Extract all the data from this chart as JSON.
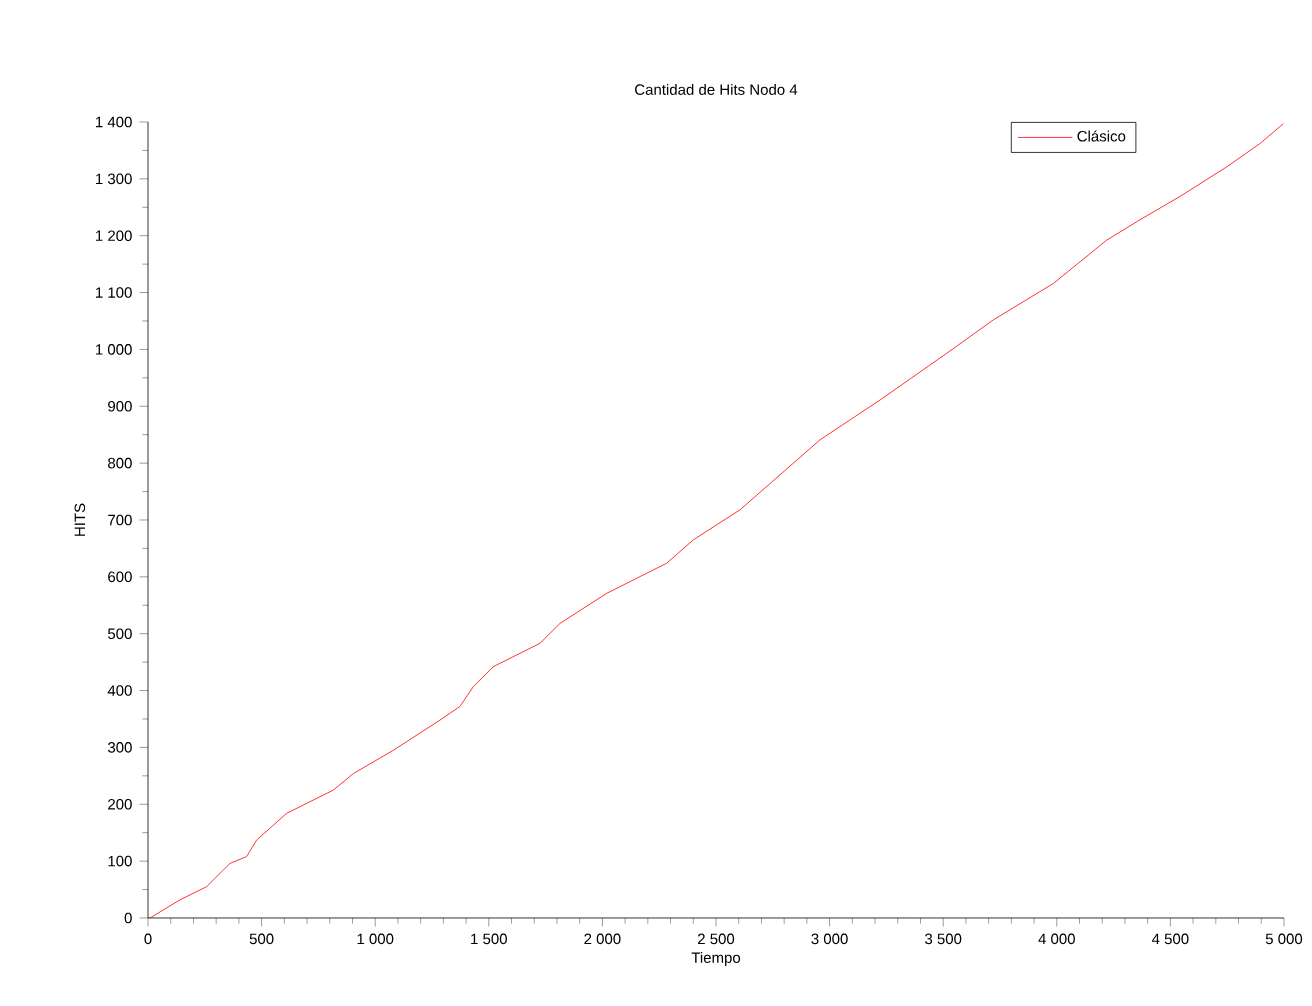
{
  "chart_data": {
    "type": "line",
    "title": "Cantidad de Hits Nodo 4",
    "xlabel": "Tiempo",
    "ylabel": "HITS",
    "x": [
      0,
      9,
      141,
      258,
      361,
      434,
      478,
      610,
      816,
      904,
      1080,
      1285,
      1373,
      1432,
      1520,
      1725,
      1813,
      2019,
      2283,
      2400,
      2606,
      2958,
      3222,
      3515,
      3721,
      3985,
      4219,
      4366,
      4542,
      4748,
      4894,
      4997
    ],
    "series": [
      {
        "name": "Clásico",
        "color": "#ff0000",
        "values": [
          0,
          0,
          32,
          55,
          96,
          108,
          137,
          184,
          225,
          254,
          295,
          348,
          372,
          407,
          442,
          483,
          518,
          571,
          624,
          665,
          718,
          841,
          911,
          993,
          1052,
          1116,
          1192,
          1228,
          1269,
          1321,
          1362,
          1397
        ]
      }
    ],
    "xlim": [
      0,
      5000
    ],
    "ylim": [
      0,
      1400
    ],
    "xticks": [
      0,
      500,
      {
        "value": 1000,
        "label": "1 000"
      },
      {
        "value": 1500,
        "label": "1 500"
      },
      {
        "value": 2000,
        "label": "2 000"
      },
      {
        "value": 2500,
        "label": "2 500"
      },
      {
        "value": 3000,
        "label": "3 000"
      },
      {
        "value": 3500,
        "label": "3 500"
      },
      {
        "value": 4000,
        "label": "4 000"
      },
      {
        "value": 4500,
        "label": "4 500"
      },
      {
        "value": 5000,
        "label": "5 000"
      }
    ],
    "yticks": [
      0,
      100,
      200,
      300,
      400,
      500,
      600,
      700,
      800,
      900,
      {
        "value": 1000,
        "label": "1 000"
      },
      {
        "value": 1100,
        "label": "1 100"
      },
      {
        "value": 1200,
        "label": "1 200"
      },
      {
        "value": 1300,
        "label": "1 300"
      },
      {
        "value": 1400,
        "label": "1 400"
      }
    ],
    "legend": "top right",
    "grid": false,
    "marker": "none",
    "line_style": "solid"
  }
}
